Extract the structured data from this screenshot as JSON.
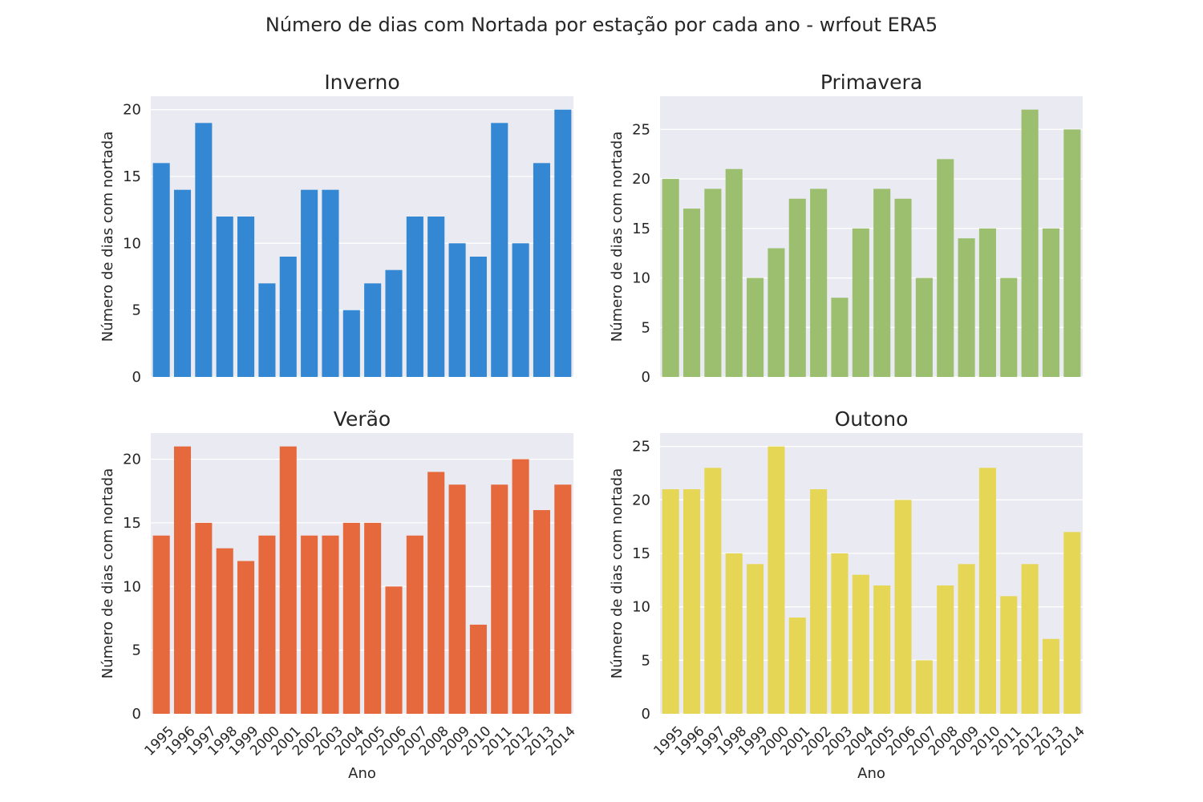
{
  "figure": {
    "title": "Número de dias com Nortada por estação por cada ano - wrfout ERA5"
  },
  "chart_data": [
    {
      "type": "bar",
      "title": "Inverno",
      "ylabel": "Número de dias com nortada",
      "xlabel": "",
      "color": "#3387d3",
      "ylim": [
        0,
        21
      ],
      "yticks": [
        0,
        5,
        10,
        15,
        20
      ],
      "categories": [
        "1995",
        "1996",
        "1997",
        "1998",
        "1999",
        "2000",
        "2001",
        "2002",
        "2003",
        "2004",
        "2005",
        "2006",
        "2007",
        "2008",
        "2009",
        "2010",
        "2011",
        "2012",
        "2013",
        "2014"
      ],
      "values": [
        16,
        14,
        19,
        12,
        12,
        7,
        9,
        14,
        14,
        5,
        7,
        8,
        12,
        12,
        10,
        9,
        19,
        10,
        16,
        20
      ],
      "show_xticklabels": false,
      "grid": true
    },
    {
      "type": "bar",
      "title": "Primavera",
      "ylabel": "Número de dias com nortada",
      "xlabel": "",
      "color": "#9bbf6f",
      "ylim": [
        0,
        28.35
      ],
      "yticks": [
        0,
        5,
        10,
        15,
        20,
        25
      ],
      "categories": [
        "1995",
        "1996",
        "1997",
        "1998",
        "1999",
        "2000",
        "2001",
        "2002",
        "2003",
        "2004",
        "2005",
        "2006",
        "2007",
        "2008",
        "2009",
        "2010",
        "2011",
        "2012",
        "2013",
        "2014"
      ],
      "values": [
        20,
        17,
        19,
        21,
        10,
        13,
        18,
        19,
        8,
        15,
        19,
        18,
        10,
        22,
        14,
        15,
        10,
        27,
        15,
        25
      ],
      "show_xticklabels": false,
      "grid": true
    },
    {
      "type": "bar",
      "title": "Verão",
      "ylabel": "Número de dias com nortada",
      "xlabel": "Ano",
      "color": "#e6693d",
      "ylim": [
        0,
        22.05
      ],
      "yticks": [
        0,
        5,
        10,
        15,
        20
      ],
      "categories": [
        "1995",
        "1996",
        "1997",
        "1998",
        "1999",
        "2000",
        "2001",
        "2002",
        "2003",
        "2004",
        "2005",
        "2006",
        "2007",
        "2008",
        "2009",
        "2010",
        "2011",
        "2012",
        "2013",
        "2014"
      ],
      "values": [
        14,
        21,
        15,
        13,
        12,
        14,
        21,
        14,
        14,
        15,
        15,
        10,
        14,
        19,
        18,
        7,
        18,
        20,
        16,
        18
      ],
      "show_xticklabels": true,
      "grid": true
    },
    {
      "type": "bar",
      "title": "Outono",
      "ylabel": "Número de dias com nortada",
      "xlabel": "Ano",
      "color": "#e6d655",
      "ylim": [
        0,
        26.25
      ],
      "yticks": [
        0,
        5,
        10,
        15,
        20,
        25
      ],
      "categories": [
        "1995",
        "1996",
        "1997",
        "1998",
        "1999",
        "2000",
        "2001",
        "2002",
        "2003",
        "2004",
        "2005",
        "2006",
        "2007",
        "2008",
        "2009",
        "2010",
        "2011",
        "2012",
        "2013",
        "2014"
      ],
      "values": [
        21,
        21,
        23,
        15,
        14,
        25,
        9,
        21,
        15,
        13,
        12,
        20,
        5,
        12,
        14,
        23,
        11,
        14,
        7,
        17
      ],
      "show_xticklabels": true,
      "grid": true
    }
  ]
}
